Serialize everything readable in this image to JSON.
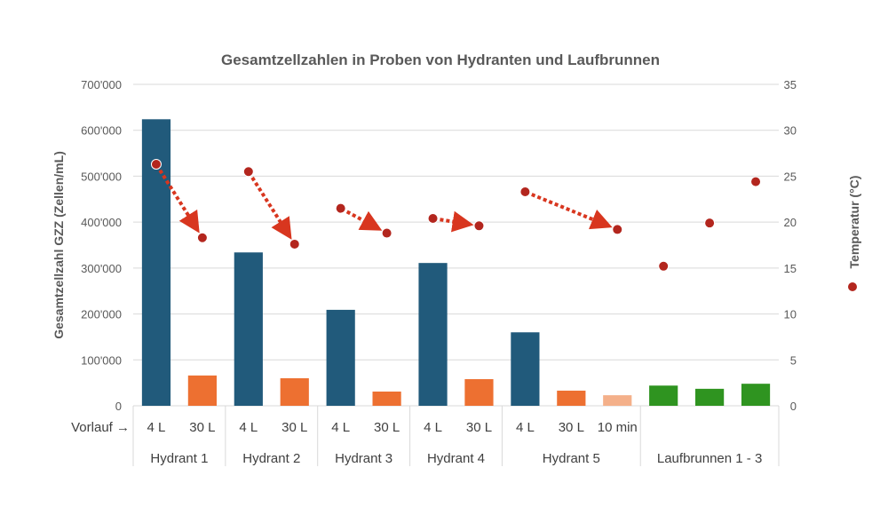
{
  "chart_data": {
    "type": "bar+scatter",
    "title": "Gesamtzellzahlen in Proben von Hydranten und Laufbrunnen",
    "ylabel": "Gesamtzellzahl GZZ (Zellen/mL)",
    "y2label": "Temperatur (°C)",
    "ylim": [
      0,
      700000
    ],
    "y2lim": [
      0,
      35
    ],
    "yticks": [
      "0",
      "100'000",
      "200'000",
      "300'000",
      "400'000",
      "500'000",
      "600'000",
      "700'000"
    ],
    "y2ticks": [
      "0",
      "5",
      "10",
      "15",
      "20",
      "25",
      "30",
      "35"
    ],
    "grid": true,
    "row_label": "Vorlauf →",
    "categories": [
      "4 L",
      "30 L",
      "4 L",
      "30 L",
      "4 L",
      "30 L",
      "4 L",
      "30 L",
      "4 L",
      "30 L",
      "10 min",
      "",
      "",
      ""
    ],
    "groups": [
      {
        "label": "Hydrant 1",
        "span": 2
      },
      {
        "label": "Hydrant 2",
        "span": 2
      },
      {
        "label": "Hydrant 3",
        "span": 2
      },
      {
        "label": "Hydrant 4",
        "span": 2
      },
      {
        "label": "Hydrant 5",
        "span": 3
      },
      {
        "label": "Laufbrunnen 1 - 3",
        "span": 3
      }
    ],
    "gzz": [
      624000,
      66000,
      334000,
      60000,
      209000,
      31000,
      311000,
      58000,
      160000,
      33000,
      23000,
      44000,
      37000,
      48000
    ],
    "bar_colors": [
      "#215a7b",
      "#ed7031",
      "#215a7b",
      "#ed7031",
      "#215a7b",
      "#ed7031",
      "#215a7b",
      "#ed7031",
      "#215a7b",
      "#ed7031",
      "#f4b08a",
      "#2f9420",
      "#2f9420",
      "#2f9420"
    ],
    "temperature": [
      26.3,
      18.3,
      25.5,
      17.6,
      21.5,
      18.8,
      20.4,
      19.6,
      23.3,
      null,
      19.2,
      15.2,
      19.9,
      24.4
    ],
    "arrows": [
      [
        0,
        1
      ],
      [
        2,
        3
      ],
      [
        4,
        5
      ],
      [
        6,
        7
      ],
      [
        8,
        10
      ]
    ],
    "point_color": "#b3261e",
    "arrow_color": "#d8361f",
    "legend": "right-axis-marker"
  }
}
